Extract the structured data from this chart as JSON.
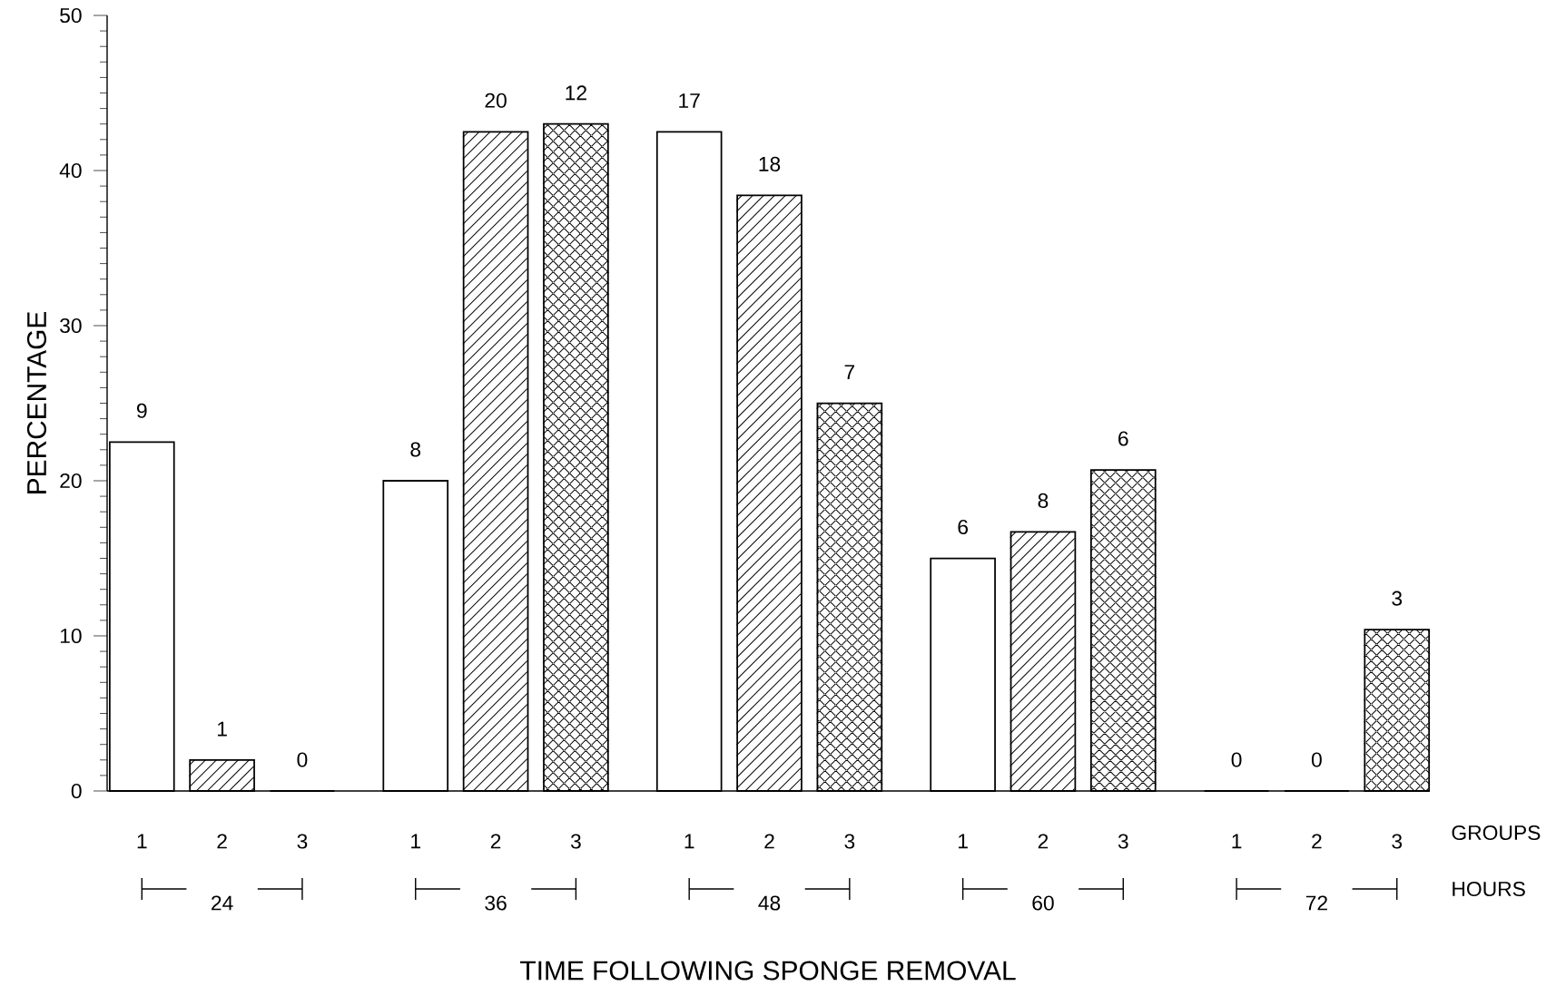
{
  "chart_data": {
    "type": "bar",
    "xlabel": "TIME FOLLOWING SPONGE REMOVAL",
    "ylabel": "PERCENTAGE",
    "categories": [
      "24",
      "36",
      "48",
      "60",
      "72"
    ],
    "series": [
      {
        "name": "1",
        "color": "#000000",
        "values": [
          22.5,
          20,
          42.5,
          15,
          0
        ]
      },
      {
        "name": "2",
        "color": "#000000",
        "values": [
          2,
          42.5,
          38.4,
          16.7,
          0
        ]
      },
      {
        "name": "3",
        "color": "#000000",
        "values": [
          0,
          43,
          25,
          20.7,
          10.4
        ]
      }
    ],
    "ylim": [
      0,
      50
    ],
    "yticks": [
      0,
      10,
      20,
      30,
      40,
      50
    ],
    "annotations": [
      "GROUPS",
      "HOURS",
      "9",
      "1",
      "0",
      "8",
      "20",
      "12",
      "17",
      "18",
      "7",
      "6",
      "8",
      "6",
      "0",
      "0",
      "3"
    ],
    "legend": false,
    "grid": false
  }
}
